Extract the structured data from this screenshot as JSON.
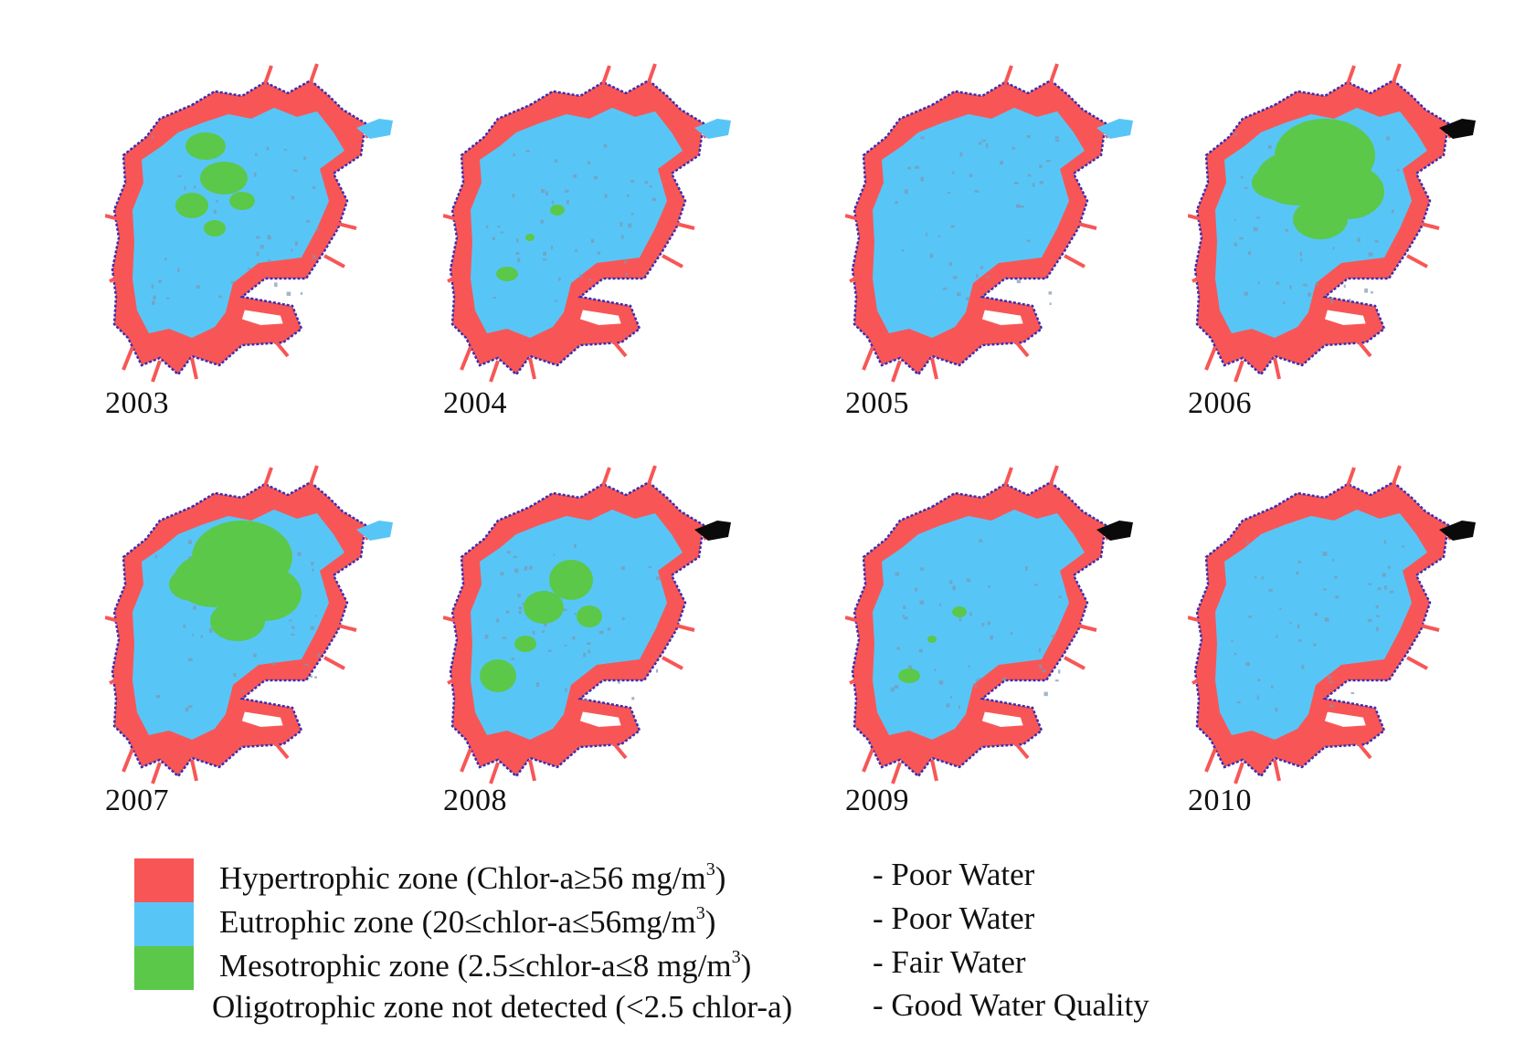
{
  "colors": {
    "hypertrophic": "#f85656",
    "eutrophic": "#57c6f7",
    "mesotrophic": "#5bc84a",
    "shoreline": "#3a2fb0",
    "speckle": "#7d97b4",
    "outlet": "#0a0a0a"
  },
  "panels": [
    {
      "year": "2003",
      "mesotrophic_extent": "small",
      "outlet_dark": false
    },
    {
      "year": "2004",
      "mesotrophic_extent": "trace",
      "outlet_dark": false
    },
    {
      "year": "2005",
      "mesotrophic_extent": "none",
      "outlet_dark": false
    },
    {
      "year": "2006",
      "mesotrophic_extent": "large",
      "outlet_dark": true
    },
    {
      "year": "2007",
      "mesotrophic_extent": "large",
      "outlet_dark": false
    },
    {
      "year": "2008",
      "mesotrophic_extent": "medium",
      "outlet_dark": true
    },
    {
      "year": "2009",
      "mesotrophic_extent": "trace",
      "outlet_dark": true
    },
    {
      "year": "2010",
      "mesotrophic_extent": "none",
      "outlet_dark": true
    }
  ],
  "legend": {
    "hypertrophic": {
      "zone": "Hypertrophic zone (Chlor-a≥56 mg/m",
      "sup": "3",
      "close": ")",
      "quality": "- Poor Water"
    },
    "eutrophic": {
      "zone": "Eutrophic zone (20≤chlor-a≤56mg/m",
      "sup": "3",
      "close": ")",
      "quality": "- Poor Water"
    },
    "mesotrophic": {
      "zone": "Mesotrophic zone (2.5≤chlor-a≤8 mg/m",
      "sup": "3",
      "close": ")",
      "quality": "- Fair Water"
    },
    "oligotrophic": {
      "zone": "Oligotrophic zone not detected (<2.5 chlor-a)",
      "quality": "- Good Water Quality"
    }
  }
}
